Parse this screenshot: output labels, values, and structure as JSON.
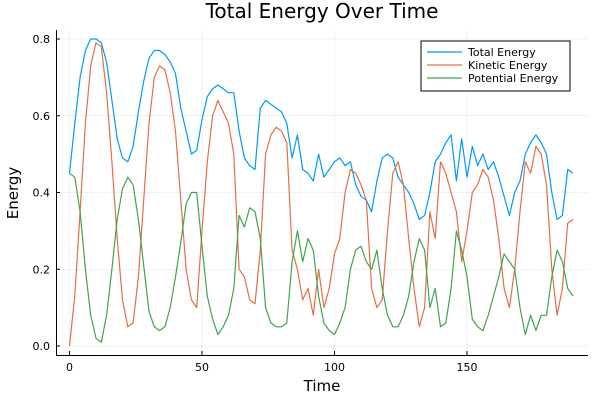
{
  "chart_data": {
    "type": "line",
    "title": "Total Energy Over Time",
    "xlabel": "Time",
    "ylabel": "Energy",
    "xlim": [
      -5,
      195
    ],
    "ylim": [
      -0.02,
      0.82
    ],
    "xticks": [
      0,
      50,
      100,
      150
    ],
    "xtick_labels": [
      "0",
      "50",
      "100",
      "150"
    ],
    "yticks": [
      0.0,
      0.2,
      0.4,
      0.6,
      0.8
    ],
    "ytick_labels": [
      "0.0",
      "0.2",
      "0.4",
      "0.6",
      "0.8"
    ],
    "grid": true,
    "legend_position": "top-right",
    "x": [
      0,
      2,
      4,
      6,
      8,
      10,
      12,
      14,
      16,
      18,
      20,
      22,
      24,
      26,
      28,
      30,
      32,
      34,
      36,
      38,
      40,
      42,
      44,
      46,
      48,
      50,
      52,
      54,
      56,
      58,
      60,
      62,
      64,
      66,
      68,
      70,
      72,
      74,
      76,
      78,
      80,
      82,
      84,
      86,
      88,
      90,
      92,
      94,
      96,
      98,
      100,
      102,
      104,
      106,
      108,
      110,
      112,
      114,
      116,
      118,
      120,
      122,
      124,
      126,
      128,
      130,
      132,
      134,
      136,
      138,
      140,
      142,
      144,
      146,
      148,
      150,
      152,
      154,
      156,
      158,
      160,
      162,
      164,
      166,
      168,
      170,
      172,
      174,
      176,
      178,
      180,
      182,
      184,
      186,
      188,
      190
    ],
    "series": [
      {
        "name": "Total Energy",
        "color": "#009AFA",
        "values": [
          0.45,
          0.58,
          0.7,
          0.77,
          0.8,
          0.8,
          0.79,
          0.74,
          0.64,
          0.54,
          0.49,
          0.48,
          0.52,
          0.61,
          0.69,
          0.75,
          0.77,
          0.77,
          0.76,
          0.74,
          0.71,
          0.62,
          0.56,
          0.5,
          0.51,
          0.59,
          0.65,
          0.67,
          0.68,
          0.67,
          0.66,
          0.66,
          0.56,
          0.49,
          0.47,
          0.46,
          0.62,
          0.64,
          0.63,
          0.62,
          0.61,
          0.58,
          0.49,
          0.55,
          0.46,
          0.45,
          0.43,
          0.5,
          0.44,
          0.46,
          0.48,
          0.49,
          0.47,
          0.48,
          0.42,
          0.39,
          0.38,
          0.35,
          0.43,
          0.49,
          0.5,
          0.49,
          0.44,
          0.42,
          0.4,
          0.37,
          0.33,
          0.34,
          0.4,
          0.48,
          0.5,
          0.53,
          0.55,
          0.43,
          0.54,
          0.44,
          0.52,
          0.47,
          0.5,
          0.46,
          0.48,
          0.44,
          0.39,
          0.34,
          0.4,
          0.43,
          0.5,
          0.53,
          0.55,
          0.53,
          0.5,
          0.4,
          0.33,
          0.34,
          0.46,
          0.45
        ]
      },
      {
        "name": "Kinetic Energy",
        "color": "#E26F46",
        "values": [
          0.0,
          0.13,
          0.35,
          0.58,
          0.73,
          0.79,
          0.78,
          0.66,
          0.48,
          0.28,
          0.12,
          0.05,
          0.06,
          0.18,
          0.38,
          0.58,
          0.7,
          0.73,
          0.72,
          0.66,
          0.56,
          0.38,
          0.2,
          0.12,
          0.1,
          0.3,
          0.48,
          0.6,
          0.64,
          0.61,
          0.58,
          0.5,
          0.2,
          0.18,
          0.12,
          0.11,
          0.25,
          0.5,
          0.55,
          0.57,
          0.56,
          0.53,
          0.25,
          0.2,
          0.12,
          0.15,
          0.08,
          0.2,
          0.1,
          0.15,
          0.24,
          0.28,
          0.4,
          0.46,
          0.45,
          0.42,
          0.38,
          0.15,
          0.1,
          0.12,
          0.3,
          0.45,
          0.48,
          0.42,
          0.28,
          0.15,
          0.05,
          0.1,
          0.35,
          0.28,
          0.48,
          0.45,
          0.4,
          0.35,
          0.22,
          0.3,
          0.4,
          0.42,
          0.46,
          0.44,
          0.38,
          0.28,
          0.15,
          0.1,
          0.2,
          0.35,
          0.48,
          0.45,
          0.52,
          0.5,
          0.42,
          0.2,
          0.08,
          0.15,
          0.32,
          0.33
        ]
      },
      {
        "name": "Potential Energy",
        "color": "#3EA44E",
        "values": [
          0.45,
          0.44,
          0.35,
          0.2,
          0.08,
          0.02,
          0.01,
          0.08,
          0.2,
          0.33,
          0.41,
          0.44,
          0.42,
          0.33,
          0.21,
          0.09,
          0.05,
          0.04,
          0.05,
          0.1,
          0.18,
          0.27,
          0.37,
          0.4,
          0.4,
          0.26,
          0.13,
          0.07,
          0.03,
          0.05,
          0.08,
          0.15,
          0.34,
          0.31,
          0.36,
          0.35,
          0.28,
          0.1,
          0.06,
          0.05,
          0.05,
          0.06,
          0.22,
          0.3,
          0.22,
          0.28,
          0.25,
          0.13,
          0.06,
          0.04,
          0.03,
          0.06,
          0.1,
          0.2,
          0.25,
          0.26,
          0.22,
          0.2,
          0.25,
          0.15,
          0.08,
          0.05,
          0.05,
          0.08,
          0.13,
          0.22,
          0.28,
          0.25,
          0.1,
          0.15,
          0.05,
          0.06,
          0.15,
          0.3,
          0.25,
          0.18,
          0.07,
          0.05,
          0.04,
          0.08,
          0.13,
          0.18,
          0.24,
          0.22,
          0.2,
          0.1,
          0.03,
          0.08,
          0.04,
          0.08,
          0.08,
          0.18,
          0.25,
          0.22,
          0.15,
          0.13
        ]
      }
    ]
  }
}
